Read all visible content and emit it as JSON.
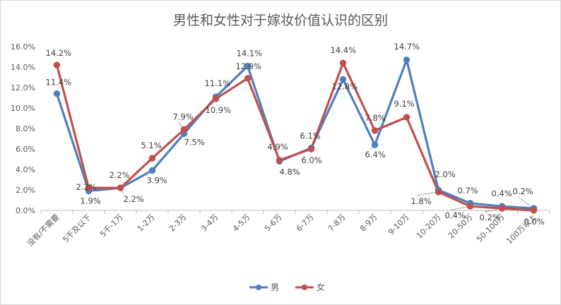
{
  "chart_data": {
    "type": "line",
    "title": "男性和女性对于嫁妆价值认识的区别",
    "categories": [
      "没有/不需要",
      "5千及以下",
      "5千-1万",
      "1-2万",
      "2-3万",
      "3-4万",
      "4-5万",
      "5-6万",
      "6-7万",
      "7-8万",
      "8-9万",
      "9-10万",
      "10-20万",
      "20-50万",
      "50-100万",
      "100万以上"
    ],
    "yticks": [
      "0.0%",
      "2.0%",
      "4.0%",
      "6.0%",
      "8.0%",
      "10.0%",
      "12.0%",
      "14.0%",
      "16.0%"
    ],
    "ylim": [
      0,
      16
    ],
    "series": [
      {
        "name": "男",
        "color": "#4f7fc0",
        "values": [
          11.4,
          1.9,
          2.2,
          3.9,
          7.5,
          11.1,
          14.1,
          4.8,
          6.1,
          12.8,
          6.4,
          14.7,
          2.0,
          0.7,
          0.4,
          0.2
        ],
        "labels": [
          "11.4%",
          "1.9%",
          "2.2%",
          "3.9%",
          "7.5%",
          "11.1%",
          "14.1%",
          "4.8%",
          "6.1%",
          "12.8%",
          "6.4%",
          "14.7%",
          "2.0%",
          "0.7%",
          "0.4%",
          "0.2%"
        ]
      },
      {
        "name": "女",
        "color": "#c0504d",
        "values": [
          14.2,
          2.2,
          2.2,
          5.1,
          7.9,
          10.9,
          12.9,
          4.9,
          6.0,
          14.4,
          7.8,
          9.1,
          1.8,
          0.4,
          0.2,
          0.0
        ],
        "labels": [
          "14.2%",
          "2.2%",
          "2.2%",
          "5.1%",
          "7.9%",
          "10.9%",
          "12.9%",
          "4.9%",
          "6.0%",
          "14.4%",
          "7.8%",
          "9.1%",
          "1.8%",
          "0.4%",
          "0.2%",
          "0.0%"
        ]
      }
    ],
    "grid": false,
    "legend": "bottom"
  }
}
